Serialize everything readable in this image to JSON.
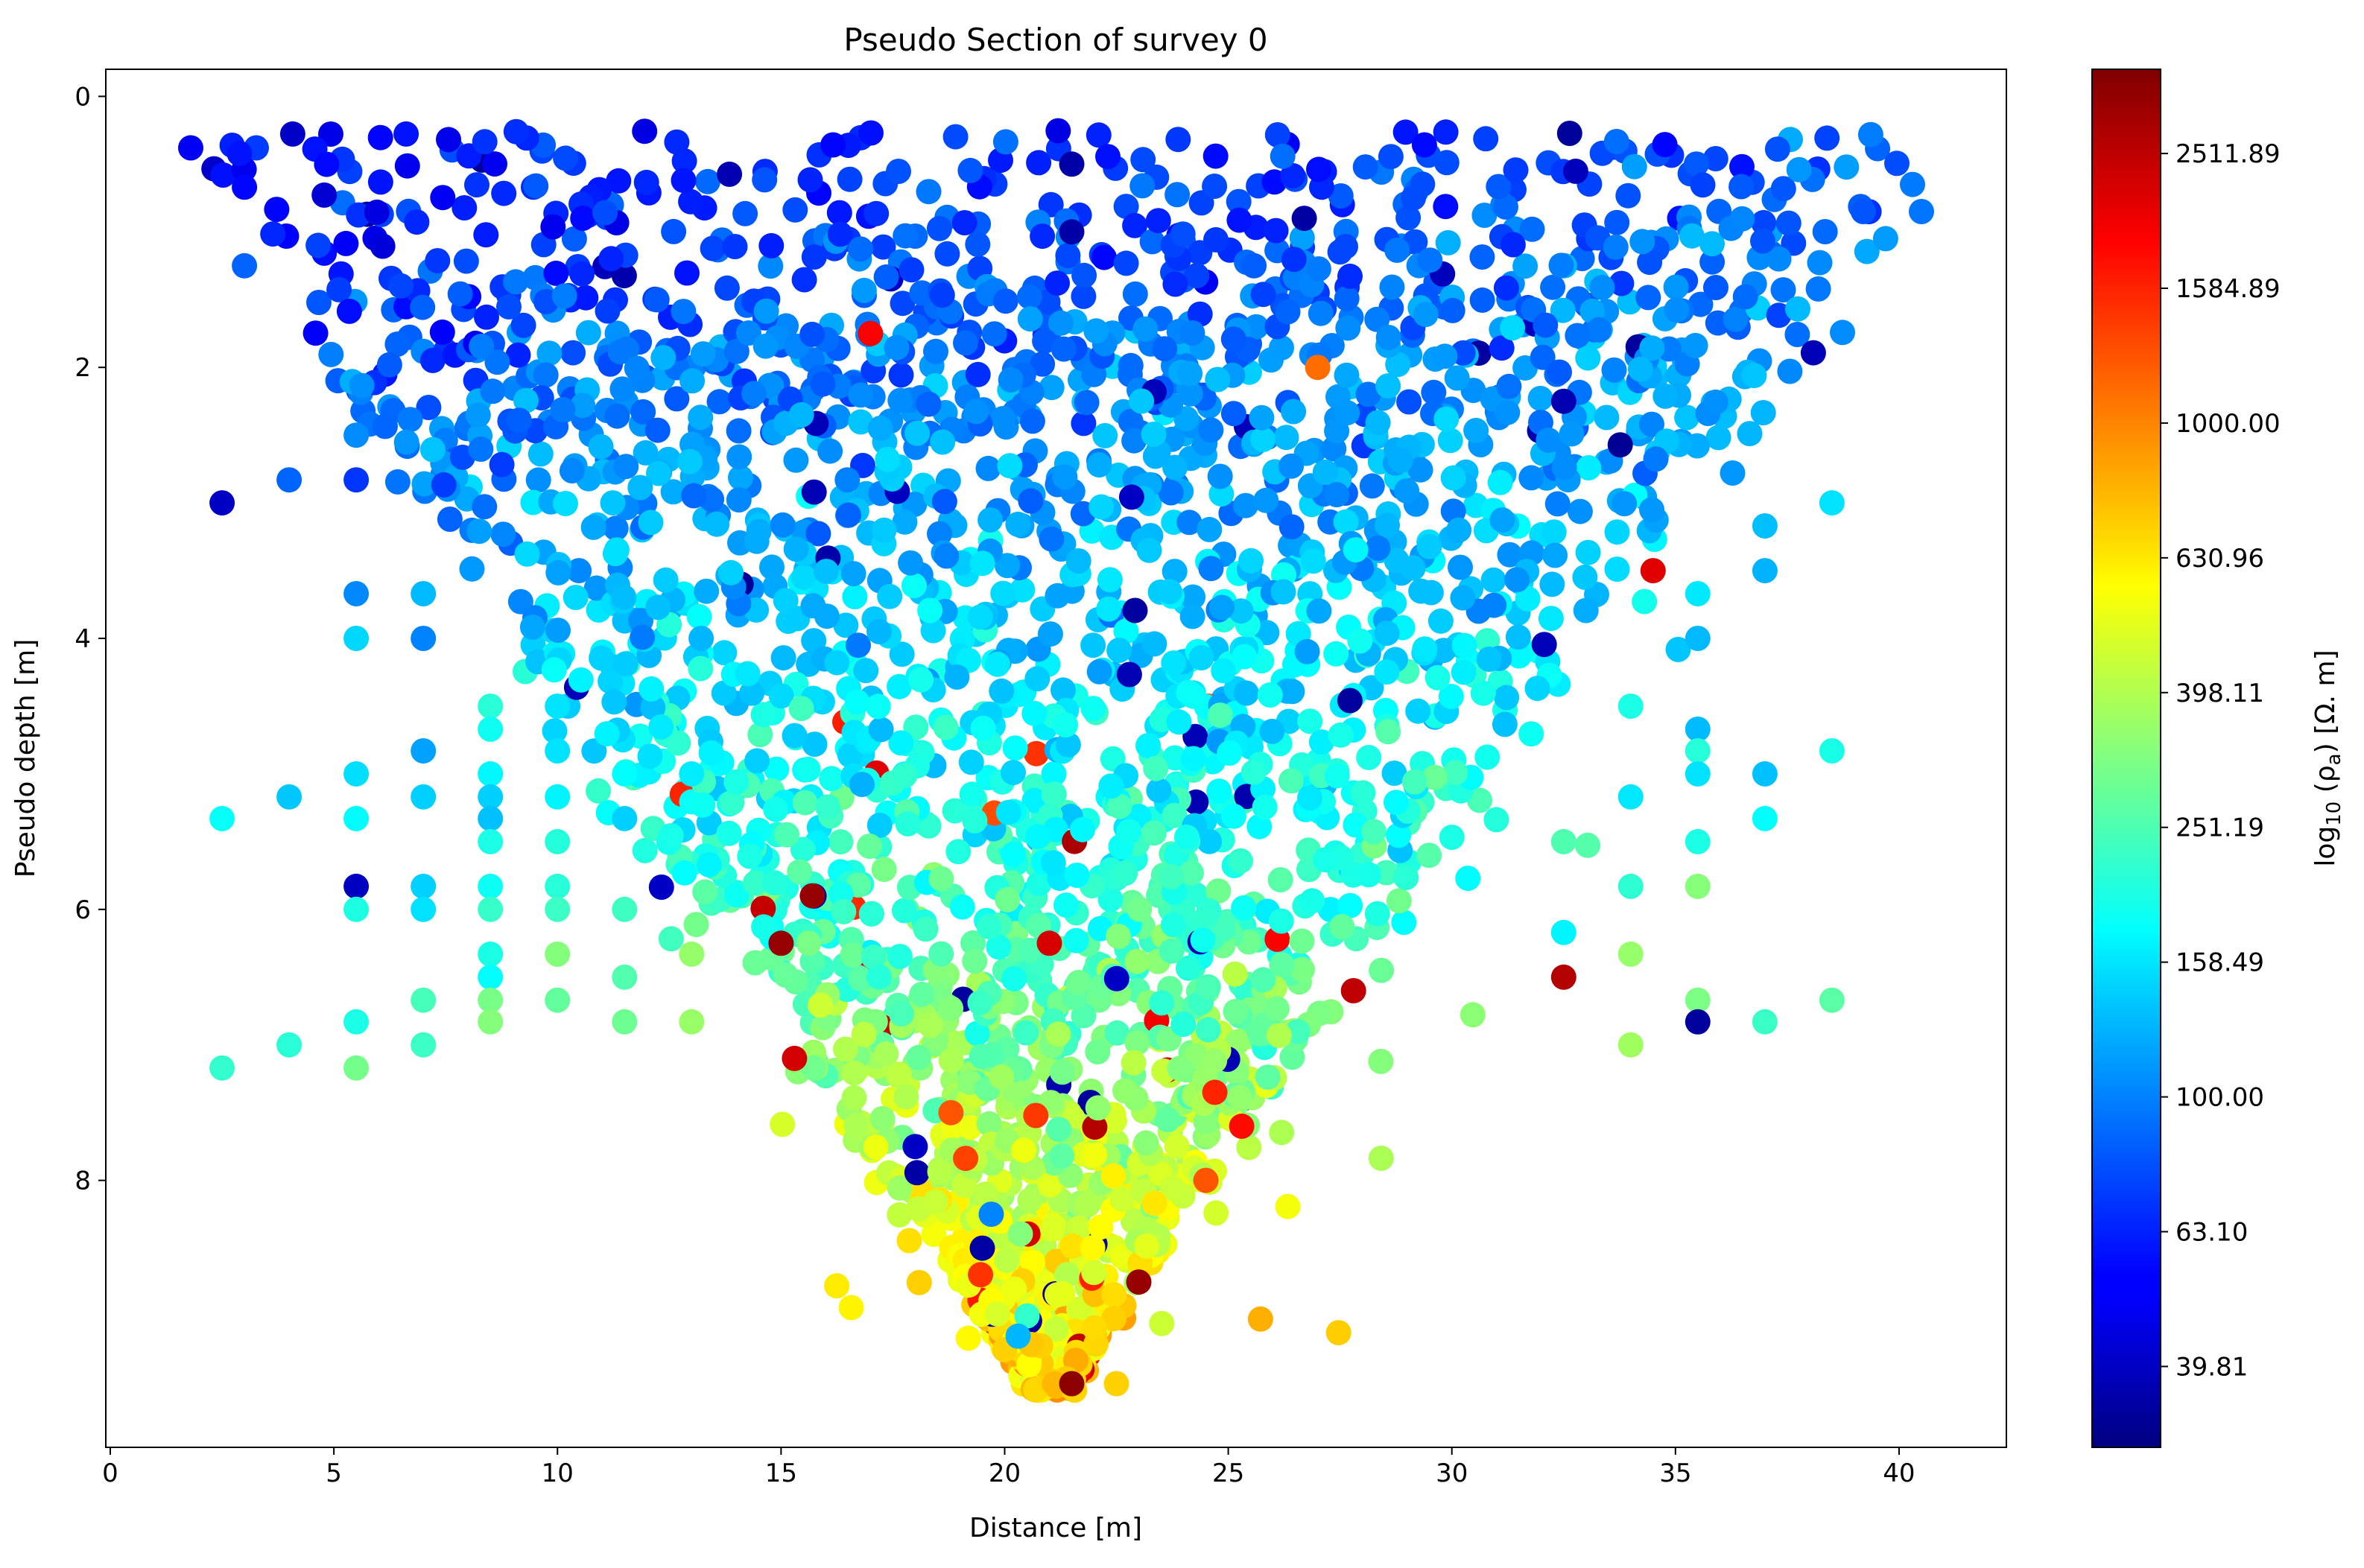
{
  "chart_data": {
    "type": "scatter",
    "title": "Pseudo Section of survey 0",
    "xlabel": "Distance [m]",
    "ylabel": "Pseudo depth [m]",
    "xlim": [
      -0.1,
      42.4
    ],
    "ylim": [
      9.97,
      -0.2
    ],
    "y_inverted": true,
    "x_ticks": [
      0,
      5,
      10,
      15,
      20,
      25,
      30,
      35,
      40
    ],
    "y_ticks": [
      0,
      2,
      4,
      6,
      8
    ],
    "grid": false,
    "colormap": "jet",
    "colorbar": {
      "label_main": "log",
      "label_sub": "10",
      "label_rest": " (ρ",
      "label_sub2": "a",
      "label_units": ") [Ω. m]",
      "log10_range": [
        1.48,
        3.525
      ],
      "tick_labels": [
        "39.81",
        "63.10",
        "100.00",
        "158.49",
        "251.19",
        "398.11",
        "630.96",
        "1000.00",
        "1584.89",
        "2511.89"
      ],
      "tick_values_log10": [
        1.6,
        1.8,
        2.0,
        2.2,
        2.4,
        2.6,
        2.8,
        3.0,
        3.2,
        3.4
      ]
    },
    "highlights": [
      {
        "x": 17.0,
        "y": 1.75,
        "log10_rho": 3.28
      },
      {
        "x": 34.5,
        "y": 3.5,
        "log10_rho": 3.33
      },
      {
        "x": 15.3,
        "y": 7.1,
        "log10_rho": 3.36
      },
      {
        "x": 21.5,
        "y": 9.5,
        "log10_rho": 3.5
      },
      {
        "x": 23.0,
        "y": 8.75,
        "log10_rho": 3.48
      },
      {
        "x": 15.0,
        "y": 6.25,
        "log10_rho": 3.48
      },
      {
        "x": 15.7,
        "y": 5.9,
        "log10_rho": 3.48
      },
      {
        "x": 27.8,
        "y": 6.6,
        "log10_rho": 3.4
      },
      {
        "x": 21.0,
        "y": 6.25,
        "log10_rho": 3.35
      },
      {
        "x": 24.7,
        "y": 7.35,
        "log10_rho": 3.2
      },
      {
        "x": 24.5,
        "y": 8.0,
        "log10_rho": 3.1
      },
      {
        "x": 18.8,
        "y": 7.5,
        "log10_rho": 3.1
      },
      {
        "x": 25.3,
        "y": 7.6,
        "log10_rho": 3.25
      },
      {
        "x": 27.0,
        "y": 2.0,
        "log10_rho": 3.05
      },
      {
        "x": 19.5,
        "y": 8.5,
        "log10_rho": 1.55
      },
      {
        "x": 18.0,
        "y": 7.75,
        "log10_rho": 1.62
      },
      {
        "x": 32.5,
        "y": 2.25,
        "log10_rho": 1.58
      },
      {
        "x": 21.5,
        "y": 0.5,
        "log10_rho": 1.56
      },
      {
        "x": 21.5,
        "y": 1.0,
        "log10_rho": 1.56
      },
      {
        "x": 26.7,
        "y": 0.9,
        "log10_rho": 1.55
      },
      {
        "x": 20.0,
        "y": 9.25,
        "log10_rho": 2.85
      },
      {
        "x": 22.5,
        "y": 9.5,
        "log10_rho": 2.85
      },
      {
        "x": 20.5,
        "y": 9.0,
        "log10_rho": 2.35
      },
      {
        "x": 20.3,
        "y": 9.15,
        "log10_rho": 2.1
      },
      {
        "x": 19.7,
        "y": 8.25,
        "log10_rho": 2.0
      }
    ]
  }
}
